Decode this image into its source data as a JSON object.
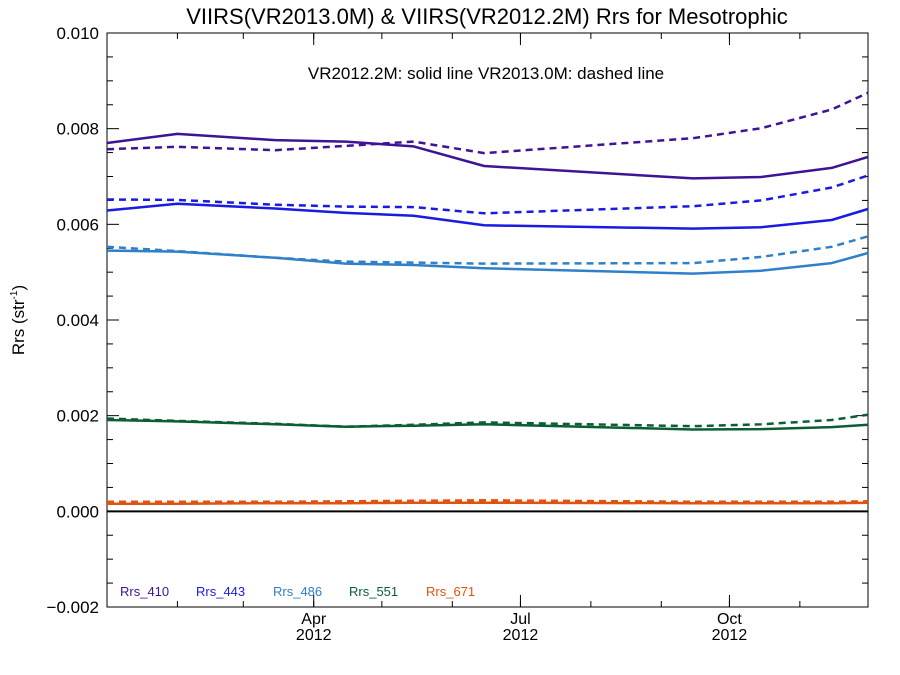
{
  "chart_data": {
    "type": "line",
    "title": "VIIRS(VR2013.0M) & VIIRS(VR2012.2M)  Rrs for Mesotrophic",
    "annotation": "VR2012.2M: solid line   VR2013.0M: dashed line",
    "ylabel": "Rrs (str",
    "ylabel_sup": "-1",
    "ylabel_close": ")",
    "xlabel": "",
    "xlim": [
      "2012-01-01",
      "2012-12-01"
    ],
    "ylim": [
      -0.002,
      0.01
    ],
    "y_ticks": [
      -0.002,
      0.0,
      0.002,
      0.004,
      0.006,
      0.008,
      0.01
    ],
    "y_tick_labels": [
      "−0.002",
      "0.000",
      "0.002",
      "0.004",
      "0.006",
      "0.008",
      "0.010"
    ],
    "x_ticks": [
      {
        "date": "2012-04-01",
        "month": "Apr",
        "year": "2012"
      },
      {
        "date": "2012-07-01",
        "month": "Jul",
        "year": "2012"
      },
      {
        "date": "2012-10-01",
        "month": "Oct",
        "year": "2012"
      }
    ],
    "zero_line": 0,
    "grid": false,
    "legend_position": "bottom-left",
    "dates": [
      "2012-01-01",
      "2012-02-01",
      "2012-03-15",
      "2012-04-15",
      "2012-05-15",
      "2012-06-15",
      "2012-09-15",
      "2012-10-15",
      "2012-11-15",
      "2012-12-01"
    ],
    "series": [
      {
        "name": "Rrs_410",
        "color": "#3e1394",
        "style": "solid",
        "values": [
          0.0077,
          0.00789,
          0.00776,
          0.00773,
          0.00763,
          0.00722,
          0.00696,
          0.00699,
          0.00718,
          0.00741
        ]
      },
      {
        "name": "Rrs_410",
        "color": "#3e1394",
        "style": "dashed",
        "values": [
          0.00757,
          0.00762,
          0.00755,
          0.00764,
          0.00773,
          0.00749,
          0.0078,
          0.00801,
          0.0084,
          0.00875
        ]
      },
      {
        "name": "Rrs_443",
        "color": "#1a1be0",
        "style": "solid",
        "values": [
          0.00629,
          0.00643,
          0.00633,
          0.00624,
          0.00618,
          0.00598,
          0.00591,
          0.00594,
          0.00609,
          0.00632
        ]
      },
      {
        "name": "Rrs_443",
        "color": "#1a1be0",
        "style": "dashed",
        "values": [
          0.00652,
          0.00651,
          0.00641,
          0.00637,
          0.00636,
          0.00623,
          0.00638,
          0.0065,
          0.00677,
          0.00702
        ]
      },
      {
        "name": "Rrs_486",
        "color": "#2f80c8",
        "style": "solid",
        "values": [
          0.00545,
          0.00543,
          0.0053,
          0.00518,
          0.00515,
          0.00508,
          0.00497,
          0.00503,
          0.00519,
          0.0054
        ]
      },
      {
        "name": "Rrs_486",
        "color": "#2f80c8",
        "style": "dashed",
        "values": [
          0.00553,
          0.00544,
          0.0053,
          0.00522,
          0.0052,
          0.00518,
          0.00519,
          0.00532,
          0.00553,
          0.00575
        ]
      },
      {
        "name": "Rrs_551",
        "color": "#0b5e32",
        "style": "solid",
        "values": [
          0.00191,
          0.00188,
          0.00182,
          0.00177,
          0.00179,
          0.00182,
          0.00171,
          0.00172,
          0.00176,
          0.00181
        ]
      },
      {
        "name": "Rrs_551",
        "color": "#0b5e32",
        "style": "dashed",
        "values": [
          0.00194,
          0.00189,
          0.00183,
          0.00177,
          0.00181,
          0.00186,
          0.00178,
          0.00182,
          0.00191,
          0.00202
        ]
      },
      {
        "name": "Rrs_671",
        "color": "#e0520f",
        "style": "solid",
        "values": [
          0.00016,
          0.00016,
          0.00017,
          0.00017,
          0.00018,
          0.00018,
          0.00017,
          0.00017,
          0.00017,
          0.00018
        ]
      },
      {
        "name": "Rrs_671",
        "color": "#e0520f",
        "style": "dashed",
        "values": [
          0.0002,
          0.0002,
          0.0002,
          0.00021,
          0.00022,
          0.00023,
          0.0002,
          0.0002,
          0.0002,
          0.00021
        ]
      }
    ],
    "legend": [
      {
        "label": "Rrs_410",
        "color": "#3e1394"
      },
      {
        "label": "Rrs_443",
        "color": "#1a1be0"
      },
      {
        "label": "Rrs_486",
        "color": "#2f80c8"
      },
      {
        "label": "Rrs_551",
        "color": "#0b5e32"
      },
      {
        "label": "Rrs_671",
        "color": "#e0520f"
      }
    ]
  }
}
